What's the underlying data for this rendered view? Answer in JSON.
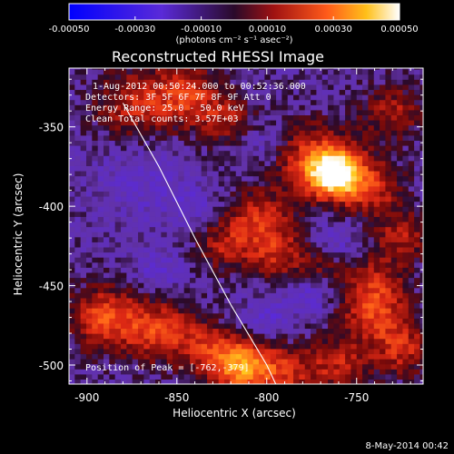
{
  "chart_data": {
    "type": "heatmap",
    "title": "Reconstructed RHESSI Image",
    "xlabel": "Heliocentric X (arcsec)",
    "ylabel": "Heliocentric Y (arcsec)",
    "xlim": [
      -910,
      -713
    ],
    "ylim": [
      -512,
      -313
    ],
    "x_ticks": [
      -900,
      -850,
      -800,
      -750
    ],
    "y_ticks": [
      -350,
      -400,
      -450,
      -500
    ],
    "x_tick_labels": [
      "-900",
      "-850",
      "-800",
      "-750"
    ],
    "y_tick_labels": [
      "-350",
      "-400",
      "-450",
      "-500"
    ],
    "colorbar": {
      "range": [
        -0.0005,
        0.0005
      ],
      "ticks": [
        -0.0005,
        -0.0003,
        -0.0001,
        0.0001,
        0.0003,
        0.0005
      ],
      "tick_labels": [
        "-0.00050",
        "-0.00030",
        "-0.00010",
        "0.00010",
        "0.00030",
        "0.00050"
      ],
      "units": "(photons cm⁻² s⁻¹ asec⁻²)"
    },
    "annotations": [
      "1-Aug-2012 00:50:24.000  to  00:52:36.000",
      "Detectors: 3F 5F 6F 7F 8F 9F Att 0",
      "Energy Range: 25.0 - 50.0 keV",
      "Clean    Total counts: 3.57E+03",
      "Position of Peak = [-762,-379]"
    ],
    "peak": {
      "x": -762,
      "y": -379
    },
    "limb": [
      [
        -880,
        -335
      ],
      [
        -860,
        -375
      ],
      [
        -840,
        -420
      ],
      [
        -820,
        -462
      ],
      [
        -800,
        -500
      ],
      [
        -795,
        -512
      ]
    ],
    "sources": [
      {
        "x": -762,
        "y": -379,
        "a": 0.00052,
        "s": 10
      },
      {
        "x": -775,
        "y": -370,
        "a": 0.00026,
        "s": 16
      },
      {
        "x": -742,
        "y": -388,
        "a": 0.00022,
        "s": 13
      },
      {
        "x": -725,
        "y": -420,
        "a": 0.00018,
        "s": 12
      },
      {
        "x": -805,
        "y": -408,
        "a": 0.00022,
        "s": 13
      },
      {
        "x": -825,
        "y": -425,
        "a": 0.00016,
        "s": 11
      },
      {
        "x": -795,
        "y": -430,
        "a": 0.00019,
        "s": 12
      },
      {
        "x": -770,
        "y": -440,
        "a": 0.00012,
        "s": 10
      },
      {
        "x": -875,
        "y": -335,
        "a": 0.0002,
        "s": 15
      },
      {
        "x": -845,
        "y": -330,
        "a": 0.00024,
        "s": 14
      },
      {
        "x": -822,
        "y": -345,
        "a": 0.00016,
        "s": 11
      },
      {
        "x": -890,
        "y": -470,
        "a": 0.00028,
        "s": 14
      },
      {
        "x": -860,
        "y": -478,
        "a": 0.00026,
        "s": 13
      },
      {
        "x": -835,
        "y": -488,
        "a": 0.00018,
        "s": 11
      },
      {
        "x": -815,
        "y": -500,
        "a": 0.0004,
        "s": 12
      },
      {
        "x": -790,
        "y": -505,
        "a": 0.00022,
        "s": 12
      },
      {
        "x": -740,
        "y": -465,
        "a": 0.00026,
        "s": 14
      },
      {
        "x": -725,
        "y": -490,
        "a": 0.0002,
        "s": 12
      },
      {
        "x": -760,
        "y": -500,
        "a": 0.0002,
        "s": 12
      },
      {
        "x": -730,
        "y": -340,
        "a": 0.00018,
        "s": 12
      },
      {
        "x": -740,
        "y": -445,
        "a": 0.00012,
        "s": 10
      }
    ],
    "sinks": [
      {
        "x": -870,
        "y": -385,
        "a": 8e-05,
        "s": 18
      },
      {
        "x": -775,
        "y": -455,
        "a": 0.00014,
        "s": 9
      },
      {
        "x": -800,
        "y": -470,
        "a": 0.00012,
        "s": 9
      },
      {
        "x": -860,
        "y": -440,
        "a": 0.0001,
        "s": 10
      },
      {
        "x": -840,
        "y": -400,
        "a": 8e-05,
        "s": 10
      },
      {
        "x": -760,
        "y": -420,
        "a": 0.0001,
        "s": 9
      },
      {
        "x": -800,
        "y": -360,
        "a": 9e-05,
        "s": 11
      }
    ],
    "background": -6e-05,
    "noise": 6e-05
  },
  "footer_date": "8-May-2014 00:42"
}
